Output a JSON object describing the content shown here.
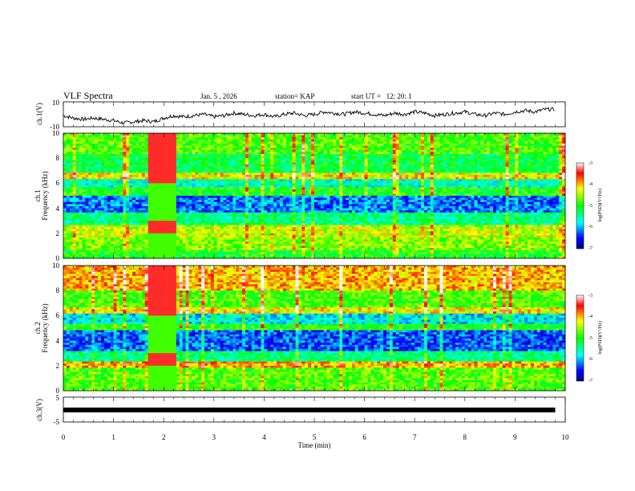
{
  "header": {
    "title": "VLF Spectra",
    "date": "Jan. 5 , 2026",
    "station": "station= KAP",
    "start_ut": "start UT =   12: 20: 1"
  },
  "colors": {
    "spec_low": "#0000cc",
    "spec_high": "#ee0000",
    "axis": "#000000",
    "background": "#ffffff"
  },
  "chart_data": [
    {
      "type": "line",
      "id": "ch1-waveform",
      "ylabel": "ch.1(V)",
      "ylim": [
        -10,
        10
      ],
      "yticks": [
        "10",
        "-10"
      ],
      "xlim": [
        0,
        10
      ],
      "x": [
        0,
        0.2,
        0.4,
        0.6,
        0.8,
        1.0,
        1.2,
        1.4,
        1.6,
        1.8,
        2.0,
        2.2,
        2.4,
        2.6,
        2.8,
        3.0,
        3.2,
        3.4,
        3.6,
        3.8,
        4.0,
        4.2,
        4.4,
        4.6,
        4.8,
        5.0,
        5.2,
        5.4,
        5.6,
        5.8,
        6.0,
        6.2,
        6.4,
        6.6,
        6.8,
        7.0,
        7.2,
        7.4,
        7.6,
        7.8,
        8.0,
        8.2,
        8.4,
        8.6,
        8.8,
        9.0,
        9.2,
        9.4,
        9.6,
        9.8
      ],
      "y": [
        -1,
        -3,
        -4,
        -3,
        -4,
        -5,
        -7,
        -6,
        -5,
        -6,
        -3,
        -1,
        -2,
        -1,
        0,
        -2,
        -1,
        1,
        0,
        -1,
        0,
        -2,
        0,
        1,
        -1,
        0,
        2,
        1,
        0,
        2,
        1,
        0,
        -1,
        1,
        0,
        2,
        1,
        -1,
        0,
        1,
        2,
        0,
        -1,
        1,
        0,
        2,
        3,
        2,
        4,
        4
      ]
    },
    {
      "type": "heatmap",
      "id": "ch1-spectrogram",
      "ylabel": "Frequency (kHz)",
      "channel_label": "ch.1",
      "ylim": [
        0,
        10
      ],
      "yticks": [
        "0",
        "2",
        "4",
        "6",
        "8",
        "10"
      ],
      "xlim": [
        0,
        10
      ],
      "colorbar": {
        "label": "log(PSD)(V²/Hz)",
        "range": [
          -7,
          -3
        ],
        "ticks": [
          "-3",
          "-4",
          "-5",
          "-6",
          "-7"
        ]
      },
      "bands_kHz": [
        [
          0,
          0.6,
          -5.0
        ],
        [
          0.6,
          1.6,
          -4.6
        ],
        [
          1.6,
          2.6,
          -4.4
        ],
        [
          2.6,
          3.6,
          -5.4
        ],
        [
          3.6,
          5.0,
          -6.2
        ],
        [
          5.0,
          5.6,
          -5.0
        ],
        [
          5.6,
          6.4,
          -5.6
        ],
        [
          6.4,
          6.8,
          -4.2
        ],
        [
          6.8,
          8.4,
          -5.2
        ],
        [
          8.4,
          10,
          -4.8
        ]
      ]
    },
    {
      "type": "heatmap",
      "id": "ch2-spectrogram",
      "ylabel": "Frequency (kHz)",
      "channel_label": "ch.2",
      "ylim": [
        0,
        10
      ],
      "yticks": [
        "0",
        "2",
        "4",
        "6",
        "8",
        "10"
      ],
      "xlim": [
        0,
        10
      ],
      "colorbar": {
        "label": "log(PSD)(V²/Hz)",
        "range": [
          -7,
          -3
        ],
        "ticks": [
          "-3",
          "-4",
          "-5",
          "-6",
          "-7"
        ]
      },
      "bands_kHz": [
        [
          0,
          0.6,
          -4.8
        ],
        [
          0.6,
          1.8,
          -4.8
        ],
        [
          1.8,
          2.4,
          -4.0
        ],
        [
          2.4,
          3.2,
          -5.4
        ],
        [
          3.2,
          4.8,
          -6.3
        ],
        [
          4.8,
          5.4,
          -5.0
        ],
        [
          5.4,
          6.2,
          -5.8
        ],
        [
          6.2,
          6.6,
          -4.2
        ],
        [
          6.6,
          8.0,
          -4.8
        ],
        [
          8.0,
          10,
          -4.0
        ]
      ]
    },
    {
      "type": "line",
      "id": "ch3-waveform",
      "ylabel": "ch.3(V)",
      "ylim": [
        -5,
        5
      ],
      "yticks": [
        "5",
        "-5"
      ],
      "xlim": [
        0,
        10
      ],
      "x": [
        0,
        9.8
      ],
      "y": [
        -1,
        -1
      ]
    }
  ],
  "xaxis": {
    "label": "Time (min)",
    "ticks": [
      "0",
      "1",
      "2",
      "3",
      "4",
      "5",
      "6",
      "7",
      "8",
      "9",
      "10"
    ]
  }
}
